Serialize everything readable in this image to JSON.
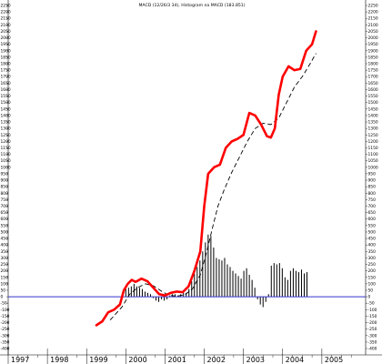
{
  "chart_data": {
    "type": "line",
    "title": "MACD (12/26/3 34), Histogram na MACD (183.851)",
    "xlabel": "",
    "ylabel": "",
    "ylim": [
      -400,
      2250
    ],
    "y_ticks": [
      2250,
      2200,
      2150,
      2100,
      2050,
      2000,
      1950,
      1900,
      1850,
      1800,
      1750,
      1700,
      1650,
      1600,
      1550,
      1500,
      1450,
      1400,
      1350,
      1300,
      1250,
      1200,
      1150,
      1100,
      1050,
      1000,
      950,
      900,
      850,
      800,
      750,
      700,
      650,
      600,
      550,
      500,
      450,
      400,
      350,
      300,
      250,
      200,
      150,
      100,
      50,
      0,
      -50,
      -100,
      -150,
      -200,
      -250,
      -300,
      -350,
      -400
    ],
    "x_ticks": [
      "1997",
      "1998",
      "1999",
      "2000",
      "2001",
      "2002",
      "2003",
      "2004",
      "2005"
    ],
    "x_range": [
      1997.0,
      2006.0
    ],
    "grid": false,
    "colors": {
      "macd": "#ff0000",
      "signal": "#000000",
      "histogram": "#000000",
      "zero_line": "#3333cc"
    },
    "series": [
      {
        "type": "line",
        "values": [
          [
            1999.25,
            -220
          ],
          [
            1999.4,
            -190
          ],
          [
            1999.55,
            -120
          ],
          [
            1999.7,
            -100
          ],
          [
            1999.85,
            -60
          ],
          [
            1999.95,
            50
          ],
          [
            2000.05,
            100
          ],
          [
            2000.15,
            130
          ],
          [
            2000.25,
            115
          ],
          [
            2000.4,
            140
          ],
          [
            2000.55,
            120
          ],
          [
            2000.7,
            70
          ],
          [
            2000.85,
            20
          ],
          [
            2001.0,
            10
          ],
          [
            2001.15,
            30
          ],
          [
            2001.3,
            40
          ],
          [
            2001.45,
            35
          ],
          [
            2001.6,
            80
          ],
          [
            2001.75,
            200
          ],
          [
            2001.9,
            350
          ],
          [
            2002.0,
            700
          ],
          [
            2002.1,
            950
          ],
          [
            2002.25,
            1000
          ],
          [
            2002.4,
            1020
          ],
          [
            2002.55,
            1150
          ],
          [
            2002.7,
            1200
          ],
          [
            2002.85,
            1220
          ],
          [
            2003.0,
            1250
          ],
          [
            2003.15,
            1420
          ],
          [
            2003.3,
            1400
          ],
          [
            2003.45,
            1330
          ],
          [
            2003.6,
            1240
          ],
          [
            2003.7,
            1230
          ],
          [
            2003.8,
            1300
          ],
          [
            2003.9,
            1560
          ],
          [
            2004.0,
            1700
          ],
          [
            2004.15,
            1780
          ],
          [
            2004.3,
            1750
          ],
          [
            2004.45,
            1760
          ],
          [
            2004.6,
            1900
          ],
          [
            2004.75,
            1950
          ],
          [
            2004.85,
            2050
          ]
        ]
      },
      {
        "type": "line",
        "dashed": true,
        "values": [
          [
            1999.6,
            -180
          ],
          [
            1999.9,
            -80
          ],
          [
            2000.1,
            20
          ],
          [
            2000.3,
            70
          ],
          [
            2000.5,
            100
          ],
          [
            2000.7,
            85
          ],
          [
            2000.9,
            45
          ],
          [
            2001.1,
            10
          ],
          [
            2001.3,
            5
          ],
          [
            2001.5,
            15
          ],
          [
            2001.7,
            60
          ],
          [
            2001.9,
            170
          ],
          [
            2002.05,
            330
          ],
          [
            2002.2,
            520
          ],
          [
            2002.35,
            700
          ],
          [
            2002.5,
            820
          ],
          [
            2002.7,
            960
          ],
          [
            2002.9,
            1080
          ],
          [
            2003.1,
            1200
          ],
          [
            2003.3,
            1300
          ],
          [
            2003.5,
            1340
          ],
          [
            2003.7,
            1330
          ],
          [
            2003.9,
            1380
          ],
          [
            2004.1,
            1500
          ],
          [
            2004.3,
            1620
          ],
          [
            2004.5,
            1700
          ],
          [
            2004.7,
            1800
          ],
          [
            2004.85,
            1880
          ]
        ]
      },
      {
        "type": "histogram",
        "values": [
          [
            2000.0,
            60
          ],
          [
            2000.07,
            70
          ],
          [
            2000.14,
            80
          ],
          [
            2000.21,
            100
          ],
          [
            2000.28,
            80
          ],
          [
            2000.35,
            70
          ],
          [
            2000.42,
            60
          ],
          [
            2000.49,
            40
          ],
          [
            2000.56,
            30
          ],
          [
            2000.63,
            20
          ],
          [
            2000.7,
            -10
          ],
          [
            2000.77,
            -30
          ],
          [
            2000.84,
            -40
          ],
          [
            2000.91,
            -20
          ],
          [
            2000.98,
            -30
          ],
          [
            2001.05,
            -20
          ],
          [
            2001.12,
            10
          ],
          [
            2001.19,
            20
          ],
          [
            2001.26,
            20
          ],
          [
            2001.33,
            10
          ],
          [
            2001.4,
            20
          ],
          [
            2001.47,
            30
          ],
          [
            2001.54,
            30
          ],
          [
            2001.61,
            60
          ],
          [
            2001.68,
            120
          ],
          [
            2001.75,
            180
          ],
          [
            2001.82,
            230
          ],
          [
            2001.89,
            280
          ],
          [
            2001.96,
            350
          ],
          [
            2002.03,
            420
          ],
          [
            2002.1,
            480
          ],
          [
            2002.17,
            470
          ],
          [
            2002.24,
            380
          ],
          [
            2002.31,
            300
          ],
          [
            2002.38,
            290
          ],
          [
            2002.45,
            280
          ],
          [
            2002.52,
            300
          ],
          [
            2002.59,
            250
          ],
          [
            2002.66,
            230
          ],
          [
            2002.73,
            200
          ],
          [
            2002.8,
            180
          ],
          [
            2002.87,
            160
          ],
          [
            2002.94,
            140
          ],
          [
            2003.01,
            200
          ],
          [
            2003.08,
            220
          ],
          [
            2003.15,
            170
          ],
          [
            2003.22,
            130
          ],
          [
            2003.29,
            70
          ],
          [
            2003.36,
            -20
          ],
          [
            2003.43,
            -60
          ],
          [
            2003.5,
            -80
          ],
          [
            2003.57,
            -40
          ],
          [
            2003.64,
            20
          ],
          [
            2003.71,
            240
          ],
          [
            2003.78,
            260
          ],
          [
            2003.85,
            250
          ],
          [
            2003.92,
            260
          ],
          [
            2003.99,
            220
          ],
          [
            2004.06,
            150
          ],
          [
            2004.13,
            130
          ],
          [
            2004.2,
            200
          ],
          [
            2004.27,
            220
          ],
          [
            2004.34,
            200
          ],
          [
            2004.41,
            190
          ],
          [
            2004.48,
            210
          ],
          [
            2004.55,
            180
          ],
          [
            2004.62,
            190
          ]
        ]
      }
    ]
  }
}
